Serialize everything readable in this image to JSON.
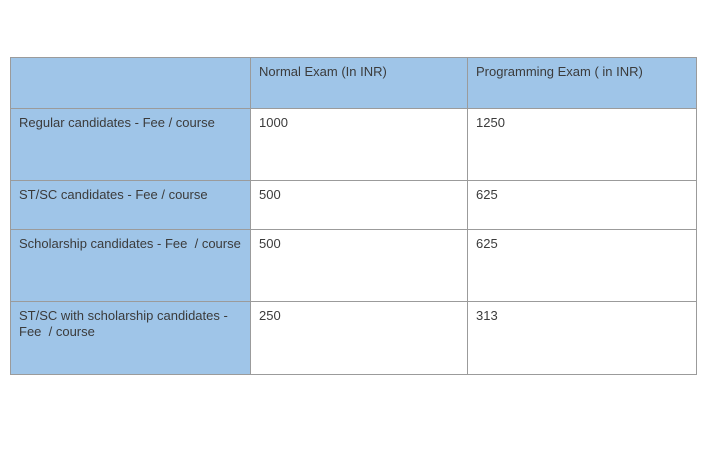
{
  "table": {
    "columns": [
      "",
      "Normal Exam (In INR)",
      "Programming Exam ( in INR)"
    ],
    "rows": [
      {
        "label": "Regular candidates - Fee / course",
        "normal": "1000",
        "programming": "1250"
      },
      {
        "label": "ST/SC candidates - Fee / course",
        "normal": "500",
        "programming": "625"
      },
      {
        "label": "Scholarship candidates - Fee  / course",
        "normal": "500",
        "programming": "625"
      },
      {
        "label": "ST/SC with scholarship candidates - Fee  / course",
        "normal": "250",
        "programming": "313"
      }
    ],
    "colors": {
      "header_bg": "#9fc5e8",
      "label_column_bg": "#9fc5e8",
      "data_cell_bg": "#ffffff",
      "border": "#9b9b9b",
      "text": "#3b3b3b"
    }
  }
}
